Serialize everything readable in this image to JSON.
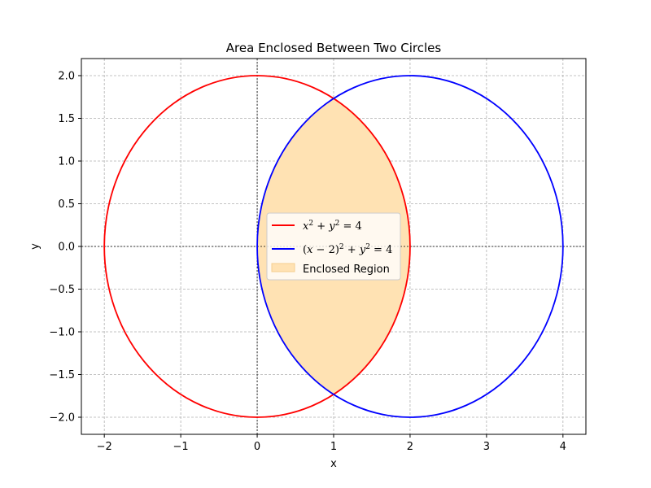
{
  "chart_data": {
    "type": "line",
    "title": "Area Enclosed Between Two Circles",
    "xlabel": "x",
    "ylabel": "y",
    "xlim": [
      -2.3,
      4.3
    ],
    "ylim": [
      -2.2,
      2.2
    ],
    "xticks": [
      -2,
      -1,
      0,
      1,
      2,
      3,
      4
    ],
    "yticks": [
      -2.0,
      -1.5,
      -1.0,
      -0.5,
      0.0,
      0.5,
      1.0,
      1.5,
      2.0
    ],
    "xtick_labels": [
      "−2",
      "−1",
      "0",
      "1",
      "2",
      "3",
      "4"
    ],
    "ytick_labels": [
      "−2.0",
      "−1.5",
      "−1.0",
      "−0.5",
      "0.0",
      "0.5",
      "1.0",
      "1.5",
      "2.0"
    ],
    "grid": true,
    "legend_position": "center",
    "series": [
      {
        "name": "x^2 + y^2 = 4",
        "kind": "circle",
        "center": [
          0,
          0
        ],
        "radius": 2,
        "color": "#ff0000"
      },
      {
        "name": "(x−2)^2 + y^2 = 4",
        "kind": "circle",
        "center": [
          2,
          0
        ],
        "radius": 2,
        "color": "#0000ff"
      }
    ],
    "filled_region": {
      "name": "Enclosed Region",
      "color": "#ffe2b3",
      "between_x": [
        0,
        2
      ]
    },
    "reference_lines": {
      "x": 0,
      "y": 0
    }
  }
}
